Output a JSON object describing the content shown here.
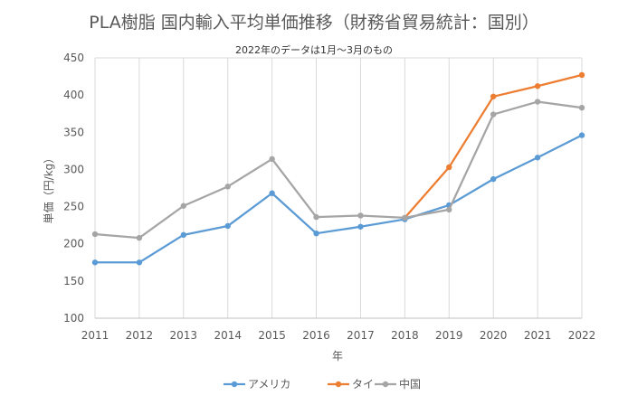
{
  "chart_data": {
    "type": "line",
    "title": "PLA樹脂 国内輸入平均単価推移（財務省貿易統計：国別）",
    "subtitle": "2022年のデータは1月～3月のもの",
    "xlabel": "年",
    "ylabel": "単価（円/kg）",
    "ylim": [
      100,
      450
    ],
    "yticks": [
      100,
      150,
      200,
      250,
      300,
      350,
      400,
      450
    ],
    "x": [
      "2011",
      "2012",
      "2013",
      "2014",
      "2015",
      "2016",
      "2017",
      "2018",
      "2019",
      "2020",
      "2021",
      "2022"
    ],
    "grid": "x-vertical",
    "legend_position": "bottom",
    "series": [
      {
        "name": "アメリカ",
        "color": "#5b9bd5",
        "values": [
          175,
          175,
          212,
          224,
          268,
          214,
          223,
          233,
          252,
          287,
          316,
          346
        ]
      },
      {
        "name": "タイ",
        "color": "#ed7d31",
        "values": [
          null,
          null,
          null,
          null,
          null,
          null,
          null,
          235,
          303,
          398,
          412,
          427
        ]
      },
      {
        "name": "中国",
        "color": "#a5a5a5",
        "values": [
          213,
          208,
          251,
          277,
          314,
          236,
          238,
          235,
          246,
          374,
          391,
          383
        ]
      }
    ]
  }
}
